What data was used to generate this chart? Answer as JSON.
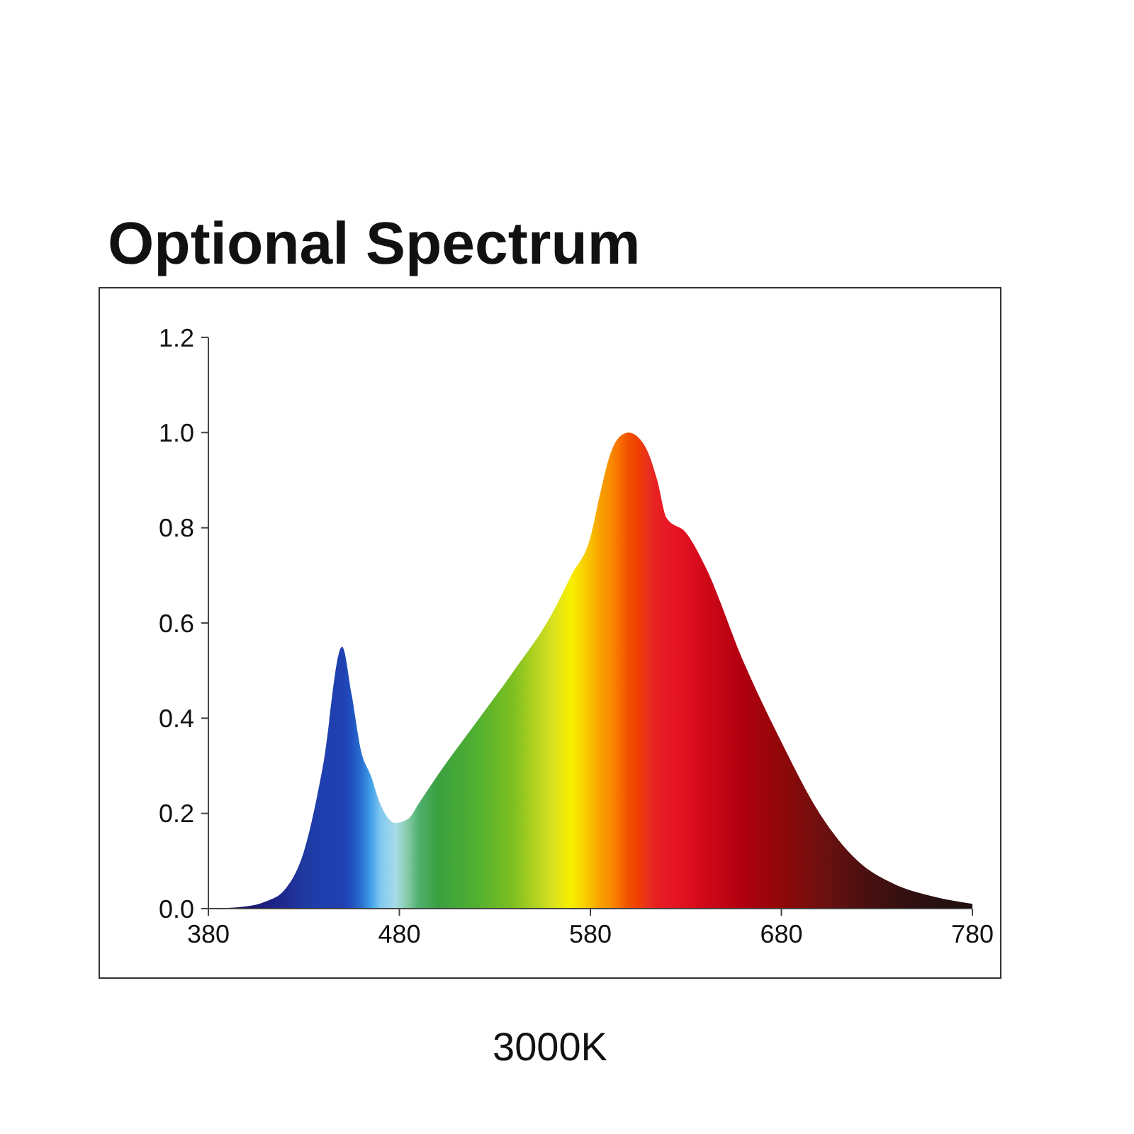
{
  "chart_data": {
    "type": "area",
    "title": "Optional Spectrum",
    "annotations": [
      "3000K"
    ],
    "x": [
      380,
      400,
      410,
      420,
      430,
      440,
      450,
      455,
      460,
      465,
      470,
      478,
      485,
      490,
      500,
      520,
      540,
      560,
      570,
      580,
      585,
      590,
      595,
      600,
      605,
      610,
      615,
      620,
      630,
      640,
      660,
      680,
      700,
      720,
      740,
      760,
      780
    ],
    "values": [
      0,
      0.005,
      0.015,
      0.04,
      0.12,
      0.3,
      0.55,
      0.45,
      0.33,
      0.28,
      0.22,
      0.18,
      0.19,
      0.22,
      0.28,
      0.39,
      0.5,
      0.62,
      0.7,
      0.78,
      0.87,
      0.95,
      0.99,
      1.0,
      0.99,
      0.96,
      0.9,
      0.82,
      0.79,
      0.72,
      0.52,
      0.35,
      0.2,
      0.1,
      0.05,
      0.025,
      0.01
    ],
    "colors": [
      "#1a1a6e",
      "#1a1a6e",
      "#1c1f80",
      "#1f2a90",
      "#1f3aa0",
      "#1f40b0",
      "#2040b0",
      "#2050c0",
      "#2a70d0",
      "#40a0e8",
      "#80c8f0",
      "#a8dce8",
      "#80c8a0",
      "#50b070",
      "#3aa040",
      "#50b030",
      "#80c020",
      "#d8e020",
      "#f8f000",
      "#f8c000",
      "#f8a000",
      "#f89000",
      "#f87000",
      "#f05000",
      "#f04000",
      "#e83020",
      "#e82020",
      "#e81828",
      "#e01020",
      "#d00818",
      "#b00010",
      "#900808",
      "#701010",
      "#501010",
      "#381010",
      "#281010",
      "#201010"
    ],
    "xlim": [
      380,
      780
    ],
    "xticks": [
      380,
      480,
      580,
      680,
      780
    ],
    "ylim": [
      0,
      1.2
    ],
    "yticks": [
      {
        "value": 0,
        "label": "0.0"
      },
      {
        "value": 0.2,
        "label": "0.2"
      },
      {
        "value": 0.4,
        "label": "0.4"
      },
      {
        "value": 0.6,
        "label": "0.6"
      },
      {
        "value": 0.8,
        "label": "0.8"
      },
      {
        "value": 1,
        "label": "1.0"
      },
      {
        "value": 1.2,
        "label": "1.2"
      }
    ]
  }
}
